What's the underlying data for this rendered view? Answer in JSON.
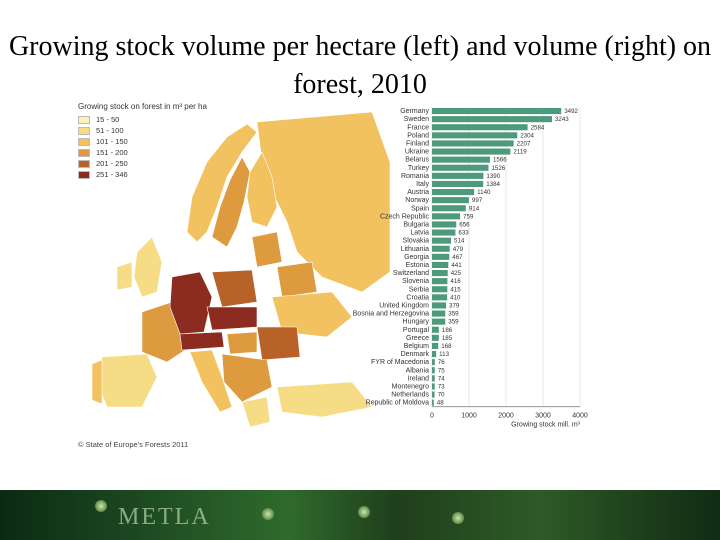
{
  "title": "Growing stock volume per hectare (left) and volume (right) on forest, 2010",
  "map": {
    "legend_title": "Growing stock on forest in m³ per ha",
    "legend": [
      {
        "label": "15 - 50",
        "color": "#fbf1b2"
      },
      {
        "label": "51 - 100",
        "color": "#f7dc86"
      },
      {
        "label": "101 - 150",
        "color": "#f2c260"
      },
      {
        "label": "151 - 200",
        "color": "#dd9a3e"
      },
      {
        "label": "201 - 250",
        "color": "#b8622a"
      },
      {
        "label": "251 - 346",
        "color": "#8c2c20"
      }
    ],
    "credit": "© State of Europe's Forests 2011"
  },
  "chart_data": {
    "type": "bar",
    "orientation": "horizontal",
    "categories": [
      "Germany",
      "Sweden",
      "France",
      "Poland",
      "Finland",
      "Ukraine",
      "Belarus",
      "Turkey",
      "Romania",
      "Italy",
      "Austria",
      "Norway",
      "Spain",
      "Czech Republic",
      "Bulgaria",
      "Latvia",
      "Slovakia",
      "Lithuania",
      "Georgia",
      "Estonia",
      "Switzerland",
      "Slovenia",
      "Serbia",
      "Croatia",
      "United Kingdom",
      "Bosnia and Herzegovina",
      "Hungary",
      "Portugal",
      "Greece",
      "Belgium",
      "Denmark",
      "FYR of Macedonia",
      "Albania",
      "Ireland",
      "Montenegro",
      "Netherlands",
      "Republic of Moldova"
    ],
    "values": [
      3492,
      3243,
      2584,
      2304,
      2207,
      2119,
      1566,
      1526,
      1390,
      1384,
      1140,
      997,
      914,
      759,
      656,
      633,
      514,
      479,
      467,
      441,
      425,
      416,
      415,
      410,
      379,
      359,
      359,
      186,
      185,
      168,
      113,
      76,
      75,
      74,
      73,
      70,
      48
    ],
    "xlabel": "Growing stock mill. m³",
    "xlim": [
      0,
      4000
    ],
    "xticks": [
      0,
      1000,
      2000,
      3000,
      4000
    ],
    "bar_color": "#4e9a7c",
    "grid": true
  }
}
